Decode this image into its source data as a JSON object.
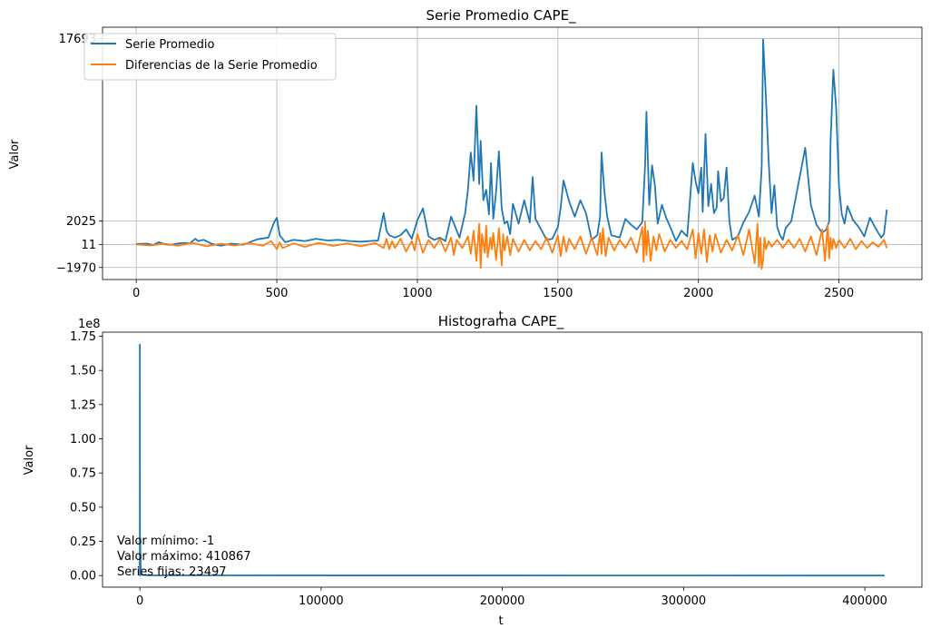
{
  "chart_data": [
    {
      "type": "line",
      "title": "Serie Promedio CAPE_",
      "xlabel": "t",
      "ylabel": "Valor",
      "grid": true,
      "legend_position": "upper-left",
      "xlim": [
        -120,
        2795
      ],
      "ylim": [
        -3000,
        18650
      ],
      "x_ticks": [
        0,
        500,
        1000,
        1500,
        2000,
        2500
      ],
      "x_tick_labels": [
        "0",
        "500",
        "1000",
        "1500",
        "2000",
        "2500"
      ],
      "y_ticks": [
        -1970,
        11,
        2025,
        17693
      ],
      "y_tick_labels": [
        "−1970",
        "11",
        "2025",
        "17693"
      ],
      "series": [
        {
          "name": "Serie Promedio",
          "color": "#1f77b4",
          "x": [
            0,
            40,
            60,
            80,
            100,
            120,
            150,
            170,
            190,
            210,
            220,
            240,
            270,
            300,
            340,
            380,
            430,
            470,
            490,
            500,
            510,
            530,
            560,
            600,
            640,
            680,
            720,
            760,
            800,
            860,
            880,
            890,
            900,
            920,
            940,
            960,
            980,
            1000,
            1020,
            1040,
            1060,
            1080,
            1100,
            1120,
            1150,
            1170,
            1180,
            1190,
            1200,
            1210,
            1220,
            1225,
            1235,
            1245,
            1255,
            1262,
            1270,
            1280,
            1290,
            1300,
            1310,
            1320,
            1330,
            1340,
            1360,
            1380,
            1400,
            1410,
            1420,
            1440,
            1460,
            1480,
            1500,
            1510,
            1520,
            1540,
            1560,
            1580,
            1600,
            1620,
            1640,
            1650,
            1655,
            1665,
            1675,
            1690,
            1720,
            1740,
            1760,
            1780,
            1800,
            1810,
            1815,
            1825,
            1835,
            1845,
            1855,
            1870,
            1885,
            1900,
            1920,
            1940,
            1960,
            1980,
            1990,
            2000,
            2010,
            2015,
            2025,
            2035,
            2045,
            2055,
            2065,
            2070,
            2080,
            2090,
            2100,
            2110,
            2120,
            2140,
            2160,
            2180,
            2200,
            2215,
            2225,
            2230,
            2240,
            2250,
            2260,
            2270,
            2280,
            2290,
            2300,
            2310,
            2330,
            2350,
            2380,
            2400,
            2420,
            2440,
            2455,
            2465,
            2470,
            2480,
            2490,
            2500,
            2510,
            2520,
            2530,
            2550,
            2570,
            2590,
            2610,
            2630,
            2650,
            2660,
            2670
          ],
          "values": [
            50,
            80,
            -50,
            200,
            40,
            -30,
            100,
            150,
            90,
            500,
            300,
            400,
            50,
            -100,
            80,
            -20,
            450,
            600,
            1900,
            2300,
            800,
            200,
            400,
            300,
            500,
            350,
            400,
            300,
            250,
            350,
            2700,
            1200,
            800,
            600,
            800,
            1300,
            500,
            2100,
            3100,
            700,
            400,
            600,
            300,
            2400,
            600,
            2700,
            4700,
            7900,
            5500,
            11900,
            5200,
            8900,
            3800,
            4700,
            2600,
            7000,
            2200,
            4500,
            8000,
            3100,
            1800,
            2000,
            900,
            3500,
            1800,
            3800,
            1900,
            5800,
            2200,
            1300,
            400,
            500,
            1500,
            3200,
            5500,
            3700,
            2400,
            3800,
            2700,
            400,
            800,
            2400,
            7900,
            4600,
            2500,
            800,
            600,
            2200,
            1700,
            1300,
            1900,
            6800,
            11400,
            3400,
            6800,
            5100,
            1800,
            3400,
            2300,
            1500,
            300,
            1200,
            700,
            7000,
            5400,
            4400,
            6600,
            2800,
            9500,
            3300,
            5200,
            2700,
            3200,
            6300,
            3700,
            4000,
            6600,
            2000,
            400,
            700,
            1900,
            2800,
            4200,
            2400,
            6600,
            17600,
            12600,
            7000,
            2700,
            5100,
            1500,
            800,
            400,
            1400,
            2000,
            4500,
            8300,
            3400,
            1700,
            1000,
            1300,
            2000,
            8800,
            15000,
            11700,
            5000,
            2600,
            1800,
            3300,
            2100,
            1500,
            700,
            2300,
            1400,
            600,
            900,
            3000
          ]
        },
        {
          "name": "Diferencias de la Serie Promedio",
          "color": "#ff7f0e",
          "x": [
            0,
            50,
            100,
            150,
            200,
            250,
            300,
            350,
            400,
            450,
            480,
            500,
            510,
            520,
            560,
            600,
            650,
            700,
            750,
            800,
            850,
            880,
            890,
            900,
            910,
            920,
            940,
            960,
            980,
            990,
            1000,
            1020,
            1040,
            1060,
            1080,
            1100,
            1120,
            1130,
            1140,
            1160,
            1180,
            1190,
            1200,
            1210,
            1220,
            1225,
            1230,
            1240,
            1245,
            1250,
            1260,
            1265,
            1270,
            1280,
            1290,
            1300,
            1305,
            1310,
            1320,
            1330,
            1340,
            1360,
            1380,
            1400,
            1420,
            1440,
            1460,
            1480,
            1500,
            1510,
            1520,
            1530,
            1540,
            1560,
            1580,
            1600,
            1620,
            1640,
            1650,
            1655,
            1660,
            1670,
            1680,
            1700,
            1720,
            1740,
            1760,
            1780,
            1800,
            1805,
            1810,
            1815,
            1820,
            1830,
            1840,
            1850,
            1860,
            1880,
            1900,
            1920,
            1940,
            1960,
            1980,
            1990,
            2000,
            2010,
            2020,
            2030,
            2040,
            2050,
            2060,
            2080,
            2100,
            2120,
            2140,
            2160,
            2180,
            2200,
            2210,
            2215,
            2220,
            2225,
            2230,
            2235,
            2240,
            2250,
            2260,
            2280,
            2300,
            2320,
            2340,
            2360,
            2380,
            2400,
            2420,
            2440,
            2450,
            2460,
            2465,
            2470,
            2475,
            2480,
            2490,
            2500,
            2520,
            2540,
            2560,
            2580,
            2600,
            2620,
            2640,
            2660,
            2670
          ],
          "values": [
            10,
            -80,
            80,
            -100,
            150,
            -150,
            80,
            -80,
            120,
            -100,
            300,
            -400,
            200,
            -300,
            100,
            -200,
            150,
            -120,
            100,
            -150,
            120,
            -300,
            500,
            -400,
            300,
            -300,
            500,
            -600,
            300,
            -500,
            900,
            -700,
            400,
            -300,
            500,
            -600,
            600,
            -900,
            400,
            -300,
            700,
            -800,
            1200,
            -1400,
            1800,
            -2000,
            900,
            -700,
            1600,
            -1100,
            600,
            -400,
            1000,
            -1300,
            1400,
            -1800,
            900,
            -500,
            700,
            -900,
            500,
            -600,
            400,
            -500,
            300,
            -400,
            600,
            -700,
            800,
            -1000,
            700,
            -600,
            500,
            -400,
            700,
            -800,
            600,
            -900,
            1000,
            -800,
            1400,
            -1000,
            600,
            -500,
            400,
            -300,
            600,
            -700,
            1500,
            -1500,
            2000,
            -900,
            1200,
            -1400,
            700,
            -500,
            900,
            -600,
            400,
            -300,
            300,
            -400,
            1300,
            -1200,
            1000,
            -800,
            1300,
            -1500,
            800,
            -600,
            900,
            -700,
            400,
            -500,
            800,
            -900,
            1300,
            -1600,
            1800,
            -1900,
            600,
            -2100,
            -1300,
            600,
            -400,
            300,
            -200,
            400,
            -300,
            400,
            -300,
            500,
            -600,
            700,
            -900,
            1300,
            -1400,
            1700,
            -1200,
            600,
            -400,
            500,
            -300,
            400,
            -300,
            500,
            -400,
            300,
            -300,
            200,
            -200,
            400,
            -300
          ]
        }
      ]
    },
    {
      "type": "line",
      "title": "Histograma CAPE_",
      "xlabel": "t",
      "ylabel": "Valor",
      "y_offset_label": "1e8",
      "grid": false,
      "xlim": [
        -20600,
        431500
      ],
      "ylim": [
        -0.085,
        1.78
      ],
      "x_ticks": [
        0,
        100000,
        200000,
        300000,
        400000
      ],
      "x_tick_labels": [
        "0",
        "100000",
        "200000",
        "300000",
        "400000"
      ],
      "y_ticks": [
        0.0,
        0.25,
        0.5,
        0.75,
        1.0,
        1.25,
        1.5,
        1.75
      ],
      "y_tick_labels": [
        "0.00",
        "0.25",
        "0.50",
        "0.75",
        "1.00",
        "1.25",
        "1.50",
        "1.75"
      ],
      "series": [
        {
          "color": "#1f77b4",
          "x": [
            0,
            0,
            100,
            200,
            500,
            1000,
            5000,
            410867
          ],
          "values": [
            0.0,
            1.69,
            0.0,
            0.28,
            0.02,
            0.005,
            0.001,
            0.0
          ]
        }
      ],
      "annotations": [
        "Valor mínimo: -1",
        "Valor máximo: 410867",
        "Series fijas: 23497"
      ]
    }
  ]
}
